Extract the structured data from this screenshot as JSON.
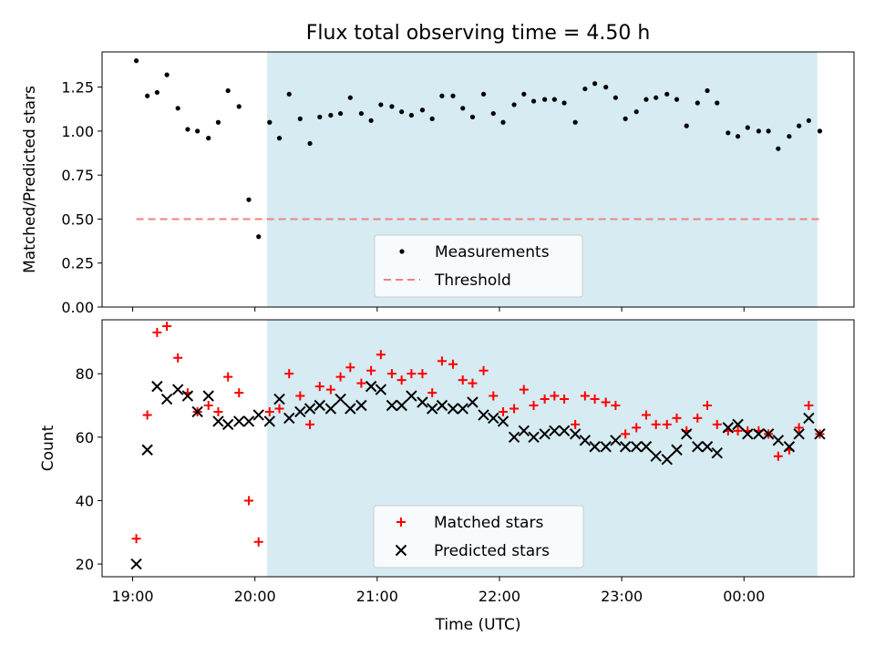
{
  "chart_data": [
    {
      "type": "scatter",
      "title": "Flux total observing time = 4.50 h",
      "ylabel": "Matched/Predicted stars",
      "xlim_hours": [
        18.75,
        24.9
      ],
      "ylim": [
        0,
        1.45
      ],
      "xticks": [
        "19:00",
        "20:00",
        "21:00",
        "22:00",
        "23:00",
        "00:00"
      ],
      "yticks": [
        0.0,
        0.25,
        0.5,
        0.75,
        1.0,
        1.25
      ],
      "ytick_labels": [
        "0.00",
        "0.25",
        "0.50",
        "0.75",
        "1.00",
        "1.25"
      ],
      "shaded_span_hours": [
        20.1,
        24.6
      ],
      "legend_placement": "lower center",
      "series": [
        {
          "name": "Measurements",
          "color": "#000000",
          "x": [
            19.03,
            19.12,
            19.2,
            19.28,
            19.37,
            19.45,
            19.53,
            19.62,
            19.7,
            19.78,
            19.87,
            19.95,
            20.03,
            20.12,
            20.2,
            20.28,
            20.37,
            20.45,
            20.53,
            20.62,
            20.7,
            20.78,
            20.87,
            20.95,
            21.03,
            21.12,
            21.2,
            21.28,
            21.37,
            21.45,
            21.53,
            21.62,
            21.7,
            21.78,
            21.87,
            21.95,
            22.03,
            22.12,
            22.2,
            22.28,
            22.37,
            22.45,
            22.53,
            22.62,
            22.7,
            22.78,
            22.87,
            22.95,
            23.03,
            23.12,
            23.2,
            23.28,
            23.37,
            23.45,
            23.53,
            23.62,
            23.7,
            23.78,
            23.87,
            23.95,
            24.03,
            24.12,
            24.2,
            24.28,
            24.37,
            24.45,
            24.53,
            24.62
          ],
          "y": [
            1.4,
            1.2,
            1.22,
            1.32,
            1.13,
            1.01,
            1.0,
            0.96,
            1.05,
            1.23,
            1.14,
            0.61,
            0.4,
            1.05,
            0.96,
            1.21,
            1.07,
            0.93,
            1.08,
            1.09,
            1.1,
            1.19,
            1.1,
            1.06,
            1.15,
            1.14,
            1.11,
            1.09,
            1.12,
            1.07,
            1.2,
            1.2,
            1.13,
            1.08,
            1.21,
            1.1,
            1.05,
            1.15,
            1.21,
            1.17,
            1.18,
            1.18,
            1.16,
            1.05,
            1.24,
            1.27,
            1.25,
            1.19,
            1.07,
            1.11,
            1.18,
            1.19,
            1.21,
            1.18,
            1.03,
            1.16,
            1.23,
            1.16,
            0.99,
            0.97,
            1.02,
            1.0,
            1.0,
            0.9,
            0.97,
            1.03,
            1.06,
            1.0
          ]
        },
        {
          "name": "Threshold",
          "color": "#f08080",
          "x": [
            19.03,
            24.62
          ],
          "y": [
            0.5,
            0.5
          ]
        }
      ]
    },
    {
      "type": "scatter",
      "xlabel": "Time (UTC)",
      "ylabel": "Count",
      "xlim_hours": [
        18.75,
        24.9
      ],
      "ylim": [
        16,
        97
      ],
      "xticks": [
        "19:00",
        "20:00",
        "21:00",
        "22:00",
        "23:00",
        "00:00"
      ],
      "yticks": [
        20,
        40,
        60,
        80
      ],
      "ytick_labels": [
        "20",
        "40",
        "60",
        "80"
      ],
      "shaded_span_hours": [
        20.1,
        24.6
      ],
      "legend_placement": "lower center",
      "series": [
        {
          "name": "Matched stars",
          "color": "#ff0000",
          "x": [
            19.03,
            19.12,
            19.2,
            19.28,
            19.37,
            19.45,
            19.53,
            19.62,
            19.7,
            19.78,
            19.87,
            19.95,
            20.03,
            20.12,
            20.2,
            20.28,
            20.37,
            20.45,
            20.53,
            20.62,
            20.7,
            20.78,
            20.87,
            20.95,
            21.03,
            21.12,
            21.2,
            21.28,
            21.37,
            21.45,
            21.53,
            21.62,
            21.7,
            21.78,
            21.87,
            21.95,
            22.03,
            22.12,
            22.2,
            22.28,
            22.37,
            22.45,
            22.53,
            22.62,
            22.7,
            22.78,
            22.87,
            22.95,
            23.03,
            23.12,
            23.2,
            23.28,
            23.37,
            23.45,
            23.53,
            23.62,
            23.7,
            23.78,
            23.87,
            23.95,
            24.03,
            24.12,
            24.2,
            24.28,
            24.37,
            24.45,
            24.53,
            24.62
          ],
          "y": [
            28,
            67,
            93,
            95,
            85,
            74,
            68,
            70,
            68,
            79,
            74,
            40,
            27,
            68,
            69,
            80,
            73,
            64,
            76,
            75,
            79,
            82,
            77,
            81,
            86,
            80,
            78,
            80,
            80,
            74,
            84,
            83,
            78,
            77,
            81,
            73,
            68,
            69,
            75,
            70,
            72,
            73,
            72,
            64,
            73,
            72,
            71,
            70,
            61,
            63,
            67,
            64,
            64,
            66,
            62,
            66,
            70,
            64,
            62,
            62,
            62,
            62,
            61,
            54,
            56,
            63,
            70,
            61
          ]
        },
        {
          "name": "Predicted stars",
          "color": "#000000",
          "x": [
            19.03,
            19.12,
            19.2,
            19.28,
            19.37,
            19.45,
            19.53,
            19.62,
            19.7,
            19.78,
            19.87,
            19.95,
            20.03,
            20.12,
            20.2,
            20.28,
            20.37,
            20.45,
            20.53,
            20.62,
            20.7,
            20.78,
            20.87,
            20.95,
            21.03,
            21.12,
            21.2,
            21.28,
            21.37,
            21.45,
            21.53,
            21.62,
            21.7,
            21.78,
            21.87,
            21.95,
            22.03,
            22.12,
            22.2,
            22.28,
            22.37,
            22.45,
            22.53,
            22.62,
            22.7,
            22.78,
            22.87,
            22.95,
            23.03,
            23.12,
            23.2,
            23.28,
            23.37,
            23.45,
            23.53,
            23.62,
            23.7,
            23.78,
            23.87,
            23.95,
            24.03,
            24.12,
            24.2,
            24.28,
            24.37,
            24.45,
            24.53,
            24.62
          ],
          "y": [
            20,
            56,
            76,
            72,
            75,
            73,
            68,
            73,
            65,
            64,
            65,
            65,
            67,
            65,
            72,
            66,
            68,
            69,
            70,
            69,
            72,
            69,
            70,
            76,
            75,
            70,
            70,
            73,
            71,
            69,
            70,
            69,
            69,
            71,
            67,
            66,
            65,
            60,
            62,
            60,
            61,
            62,
            62,
            61,
            59,
            57,
            57,
            59,
            57,
            57,
            57,
            54,
            53,
            56,
            61,
            57,
            57,
            55,
            63,
            64,
            61,
            61,
            61,
            59,
            57,
            61,
            66,
            61
          ]
        }
      ]
    }
  ]
}
